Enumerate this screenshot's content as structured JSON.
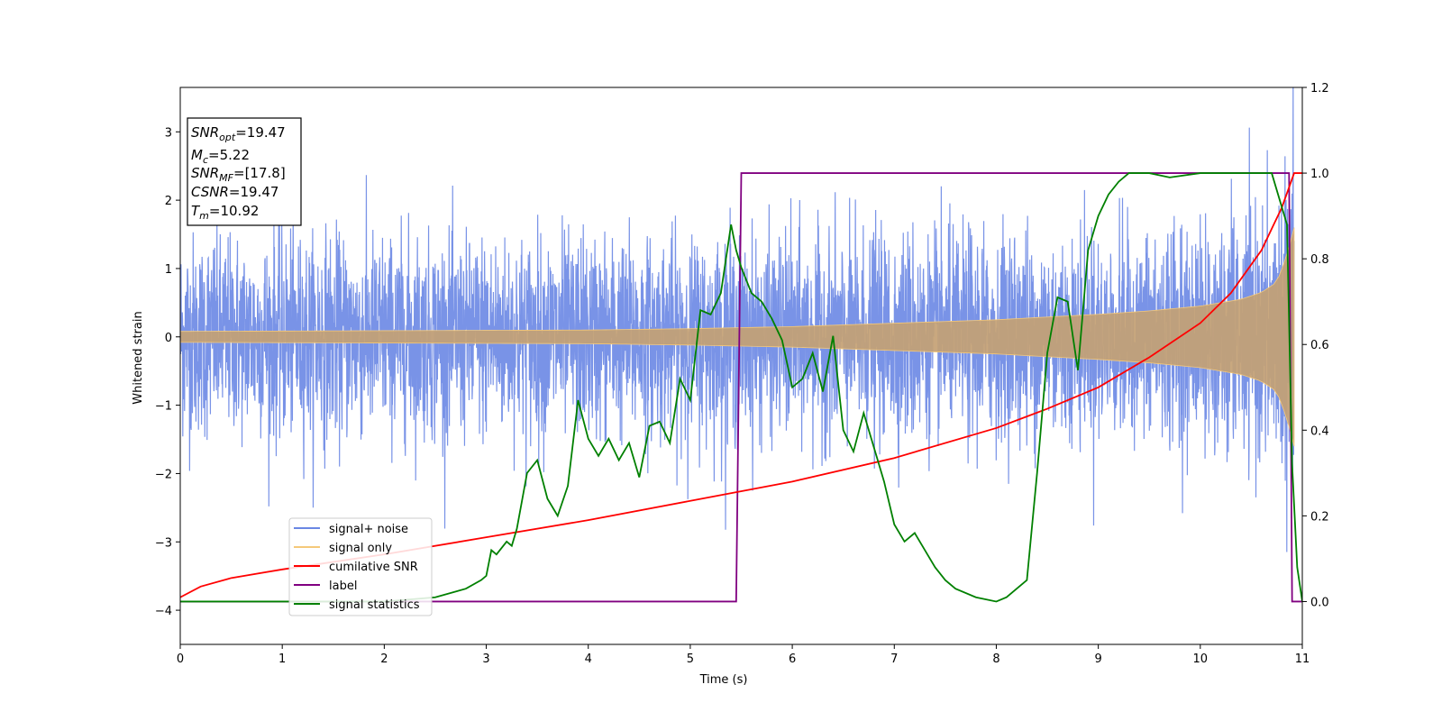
{
  "chart_data": {
    "type": "line",
    "xlabel": "Time (s)",
    "ylabel": "Whitened strain",
    "xlim": [
      0,
      11
    ],
    "ylim": [
      -4.5,
      3.65
    ],
    "ylim_right": [
      -0.1,
      1.2
    ],
    "x_ticks": [
      "0",
      "1",
      "2",
      "3",
      "4",
      "5",
      "6",
      "7",
      "8",
      "9",
      "10",
      "11"
    ],
    "y_ticks": [
      "3",
      "2",
      "1",
      "0",
      "−1",
      "−2",
      "−3",
      "−4"
    ],
    "y_ticks_right": [
      "1.2",
      "1.0",
      "0.8",
      "0.6",
      "0.4",
      "0.2",
      "0.0"
    ],
    "legend_position": "lower-left",
    "series": [
      {
        "name": "signal+ noise",
        "color": "#6a87e4",
        "axis": "left",
        "noise_std": 0.72,
        "time_range": [
          0,
          10.92
        ]
      },
      {
        "name": "signal only",
        "color": "#f5c97a",
        "axis": "left",
        "amplitude_envelope": [
          [
            0,
            0.08
          ],
          [
            2,
            0.09
          ],
          [
            4,
            0.1
          ],
          [
            5,
            0.12
          ],
          [
            6,
            0.15
          ],
          [
            7,
            0.2
          ],
          [
            8,
            0.25
          ],
          [
            9,
            0.33
          ],
          [
            9.5,
            0.38
          ],
          [
            10,
            0.45
          ],
          [
            10.4,
            0.55
          ],
          [
            10.6,
            0.65
          ],
          [
            10.75,
            0.8
          ],
          [
            10.85,
            1.2
          ],
          [
            10.92,
            1.6
          ]
        ],
        "time_range": [
          0,
          10.92
        ]
      },
      {
        "name": "cumilative SNR",
        "color": "#ff0000",
        "axis": "right",
        "points": [
          [
            0,
            0.01
          ],
          [
            0.2,
            0.035
          ],
          [
            0.5,
            0.055
          ],
          [
            1,
            0.075
          ],
          [
            2,
            0.11
          ],
          [
            3,
            0.15
          ],
          [
            4,
            0.19
          ],
          [
            5,
            0.235
          ],
          [
            6,
            0.28
          ],
          [
            7,
            0.335
          ],
          [
            8,
            0.405
          ],
          [
            8.5,
            0.45
          ],
          [
            9,
            0.5
          ],
          [
            9.5,
            0.57
          ],
          [
            10,
            0.65
          ],
          [
            10.3,
            0.72
          ],
          [
            10.6,
            0.82
          ],
          [
            10.8,
            0.92
          ],
          [
            10.92,
            1.0
          ],
          [
            11,
            1.0
          ]
        ]
      },
      {
        "name": "label",
        "color": "#800080",
        "axis": "right",
        "points": [
          [
            0,
            0
          ],
          [
            5.45,
            0
          ],
          [
            5.5,
            1.0
          ],
          [
            10.87,
            1.0
          ],
          [
            10.9,
            0
          ],
          [
            11,
            0
          ]
        ]
      },
      {
        "name": "signal statistics",
        "color": "#008000",
        "axis": "right",
        "points": [
          [
            0,
            0
          ],
          [
            2,
            0.0
          ],
          [
            2.5,
            0.01
          ],
          [
            2.8,
            0.03
          ],
          [
            2.95,
            0.05
          ],
          [
            3.0,
            0.06
          ],
          [
            3.05,
            0.12
          ],
          [
            3.1,
            0.11
          ],
          [
            3.2,
            0.14
          ],
          [
            3.25,
            0.13
          ],
          [
            3.3,
            0.17
          ],
          [
            3.4,
            0.3
          ],
          [
            3.5,
            0.33
          ],
          [
            3.6,
            0.24
          ],
          [
            3.7,
            0.2
          ],
          [
            3.8,
            0.27
          ],
          [
            3.9,
            0.47
          ],
          [
            4.0,
            0.38
          ],
          [
            4.1,
            0.34
          ],
          [
            4.2,
            0.38
          ],
          [
            4.3,
            0.33
          ],
          [
            4.4,
            0.37
          ],
          [
            4.5,
            0.29
          ],
          [
            4.6,
            0.41
          ],
          [
            4.7,
            0.42
          ],
          [
            4.8,
            0.37
          ],
          [
            4.9,
            0.52
          ],
          [
            5.0,
            0.47
          ],
          [
            5.1,
            0.68
          ],
          [
            5.2,
            0.67
          ],
          [
            5.3,
            0.72
          ],
          [
            5.4,
            0.88
          ],
          [
            5.45,
            0.82
          ],
          [
            5.5,
            0.78
          ],
          [
            5.6,
            0.72
          ],
          [
            5.7,
            0.7
          ],
          [
            5.8,
            0.66
          ],
          [
            5.9,
            0.61
          ],
          [
            6.0,
            0.5
          ],
          [
            6.1,
            0.52
          ],
          [
            6.2,
            0.58
          ],
          [
            6.3,
            0.49
          ],
          [
            6.4,
            0.62
          ],
          [
            6.5,
            0.4
          ],
          [
            6.6,
            0.35
          ],
          [
            6.7,
            0.44
          ],
          [
            6.8,
            0.36
          ],
          [
            6.9,
            0.28
          ],
          [
            7.0,
            0.18
          ],
          [
            7.1,
            0.14
          ],
          [
            7.2,
            0.16
          ],
          [
            7.3,
            0.12
          ],
          [
            7.4,
            0.08
          ],
          [
            7.5,
            0.05
          ],
          [
            7.6,
            0.03
          ],
          [
            7.8,
            0.01
          ],
          [
            8.0,
            0.0
          ],
          [
            8.1,
            0.01
          ],
          [
            8.2,
            0.03
          ],
          [
            8.3,
            0.05
          ],
          [
            8.4,
            0.3
          ],
          [
            8.5,
            0.58
          ],
          [
            8.6,
            0.71
          ],
          [
            8.7,
            0.7
          ],
          [
            8.8,
            0.54
          ],
          [
            8.9,
            0.82
          ],
          [
            9.0,
            0.9
          ],
          [
            9.1,
            0.95
          ],
          [
            9.2,
            0.98
          ],
          [
            9.3,
            1.0
          ],
          [
            9.5,
            1.0
          ],
          [
            9.7,
            0.99
          ],
          [
            10.0,
            1.0
          ],
          [
            10.3,
            1.0
          ],
          [
            10.7,
            1.0
          ],
          [
            10.85,
            0.88
          ],
          [
            10.9,
            0.32
          ],
          [
            10.95,
            0.08
          ],
          [
            11,
            0
          ]
        ]
      }
    ]
  },
  "info_box": {
    "snr_opt_label": "SNR",
    "snr_opt_sub": "opt",
    "snr_opt_value": "=19.47",
    "mc_label": "M",
    "mc_sub": "c",
    "mc_value": "=5.22",
    "snr_mf_label": "SNR",
    "snr_mf_sub": "MF",
    "snr_mf_value": "=[17.8]",
    "csnr_label": "CSNR",
    "csnr_value": "=19.47",
    "tm_label": "T",
    "tm_sub": "m",
    "tm_value": "=10.92"
  }
}
